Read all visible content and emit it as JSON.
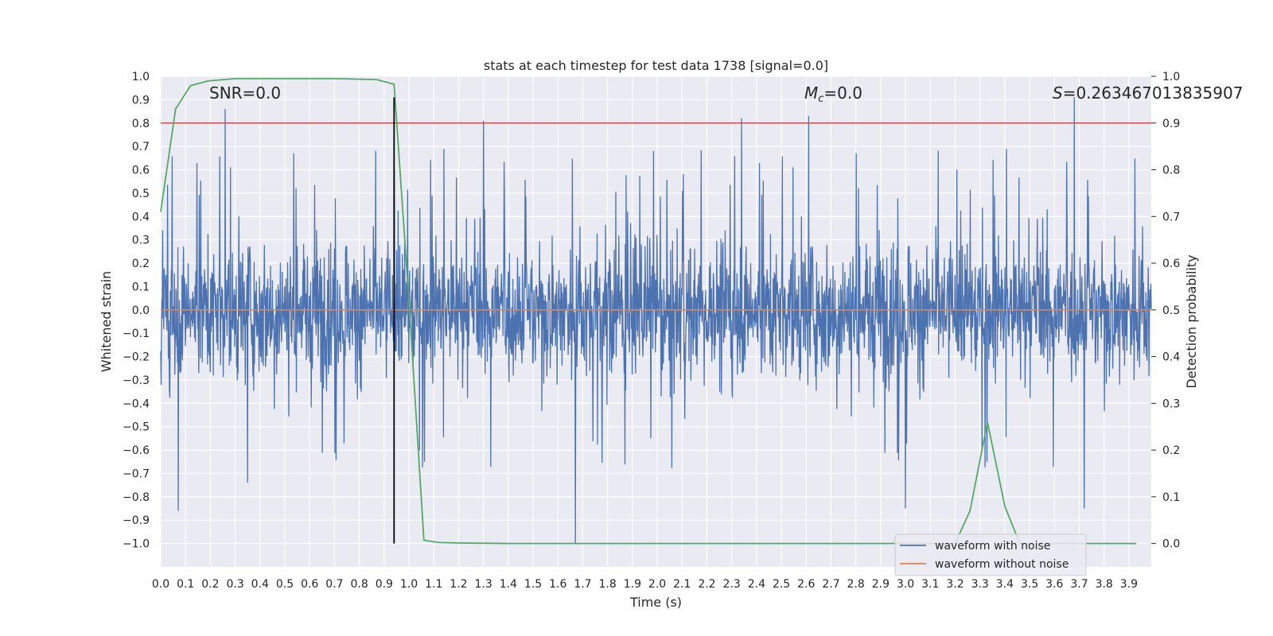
{
  "chart_data": {
    "type": "line",
    "title": "stats at each timestep for test data 1738 [signal=0.0]",
    "xlabel": "Time (s)",
    "ylabel": "Whitened strain",
    "y2label": "Detection probability",
    "xlim": [
      0.0,
      3.99
    ],
    "ylim": [
      -1.1,
      1.0
    ],
    "y2lim": [
      -0.05,
      1.0
    ],
    "x_ticks": [
      "0.0",
      "0.1",
      "0.2",
      "0.3",
      "0.4",
      "0.5",
      "0.6",
      "0.7",
      "0.8",
      "0.9",
      "1.0",
      "1.1",
      "1.2",
      "1.3",
      "1.4",
      "1.5",
      "1.6",
      "1.7",
      "1.8",
      "1.9",
      "2.0",
      "2.1",
      "2.2",
      "2.3",
      "2.4",
      "2.5",
      "2.6",
      "2.7",
      "2.8",
      "2.9",
      "3.0",
      "3.1",
      "3.2",
      "3.3",
      "3.4",
      "3.5",
      "3.6",
      "3.7",
      "3.8",
      "3.9"
    ],
    "y_ticks": [
      "1.0",
      "0.9",
      "0.8",
      "0.7",
      "0.6",
      "0.5",
      "0.4",
      "0.3",
      "0.2",
      "0.1",
      "0.0",
      "−0.1",
      "−0.2",
      "−0.3",
      "−0.4",
      "−0.5",
      "−0.6",
      "−0.7",
      "−0.8",
      "−0.9",
      "−1.0"
    ],
    "y2_ticks": [
      "1.0",
      "0.9",
      "0.8",
      "0.7",
      "0.6",
      "0.5",
      "0.4",
      "0.3",
      "0.2",
      "0.1",
      "0.0"
    ],
    "annotations": {
      "snr": "SNR=0.0",
      "mc_symbol": "M",
      "mc_sub": "c",
      "mc_value": "=0.0",
      "s_symbol": "S",
      "s_value": "=0.263467013835907"
    },
    "series": [
      {
        "name": "waveform with noise",
        "color": "#4c72b0",
        "kind": "noise",
        "range": [
          -0.5,
          0.55
        ],
        "spikes": [
          {
            "x": 0.26,
            "y": 0.86
          },
          {
            "x": 1.3,
            "y": 0.81
          },
          {
            "x": 2.34,
            "y": 0.82
          },
          {
            "x": 2.61,
            "y": 0.83
          },
          {
            "x": 3.68,
            "y": 0.91
          },
          {
            "x": 1.67,
            "y": -1.0
          },
          {
            "x": 0.07,
            "y": -0.86
          },
          {
            "x": 3.0,
            "y": -0.85
          },
          {
            "x": 3.72,
            "y": -0.85
          },
          {
            "x": 0.35,
            "y": -0.74
          }
        ]
      },
      {
        "name": "waveform without noise",
        "color": "#dd8452",
        "kind": "flat",
        "value": 0.0
      },
      {
        "name": "detection probability",
        "color": "#55a868",
        "axis": "y2",
        "x": [
          0.0,
          0.06,
          0.12,
          0.19,
          0.3,
          0.5,
          0.7,
          0.87,
          0.94,
          1.0,
          1.06,
          1.12,
          1.2,
          1.4,
          2.0,
          3.0,
          3.2,
          3.26,
          3.33,
          3.4,
          3.46,
          3.52,
          3.7,
          3.93
        ],
        "values": [
          0.71,
          0.93,
          0.98,
          0.99,
          0.995,
          0.995,
          0.995,
          0.993,
          0.983,
          0.52,
          0.007,
          0.002,
          0.001,
          0.0,
          0.0,
          0.0,
          0.0,
          0.07,
          0.26,
          0.08,
          0.0,
          0.0,
          0.0,
          0.0
        ]
      }
    ],
    "threshold": {
      "axis": "y2",
      "value": 0.9,
      "color": "#c44e52"
    },
    "marker_line": {
      "x": 0.94,
      "color": "#000000"
    },
    "legend": {
      "placement": "lower-right",
      "entries": [
        "waveform with noise",
        "waveform without noise"
      ]
    }
  }
}
